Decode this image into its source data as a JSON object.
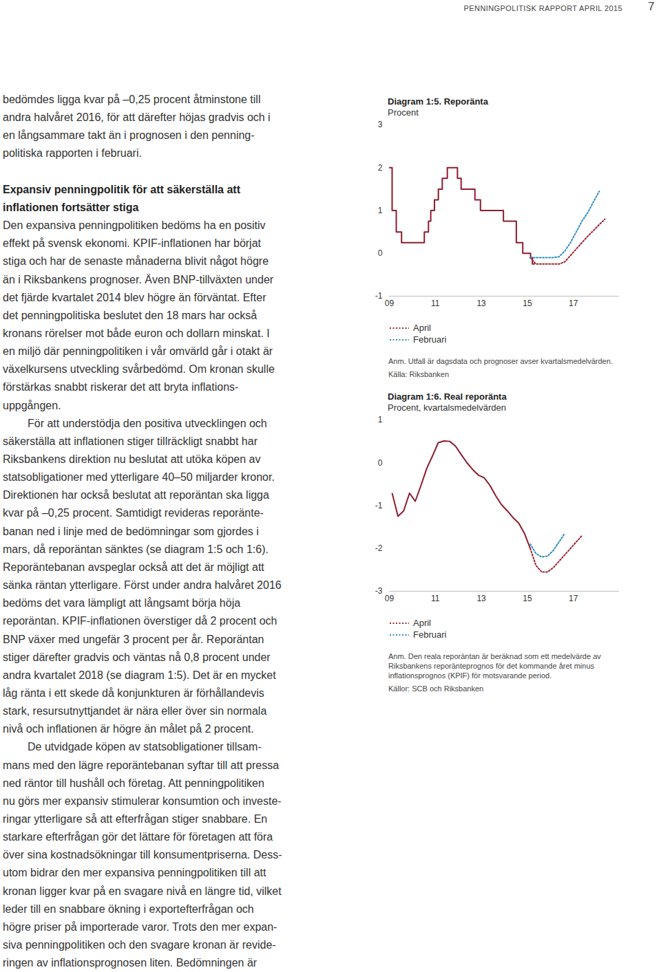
{
  "header": {
    "text": "PENNINGPOLITISK RAPPORT APRIL 2015",
    "page_number": 7
  },
  "body": [
    {
      "style": "text",
      "indent": false,
      "lines": [
        "bedömdes ligga kvar på –0,25 procent åtminstone till",
        "andra halvåret 2016, för att därefter höjas gradvis och i",
        "en långsammare takt än i prognosen i den penning-",
        "politiska rapporten i februari."
      ]
    },
    {
      "style": "heading",
      "indent": false,
      "lines": [
        "Expansiv penningpolitik för att säkerställa att",
        "inflationen fortsätter stiga"
      ]
    },
    {
      "style": "text",
      "indent": false,
      "lines": [
        "Den expansiva penningpolitiken bedöms ha en positiv",
        "effekt på svensk ekonomi. KPIF-inflationen har börjat",
        "stiga och har de senaste månaderna blivit något högre",
        "än i Riksbankens prognoser. Även BNP-tillväxten under",
        "det fjärde kvartalet 2014 blev högre än förväntat. Efter",
        "det penningpolitiska beslutet den 18 mars har också",
        "kronans rörelser mot både euron och dollarn minskat. I",
        "en miljö där penningpolitiken i vår omvärld går i otakt är",
        "växelkursens utveckling svårbedömd. Om kronan skulle",
        "förstärkas snabbt riskerar det att bryta inflations-",
        "uppgången."
      ]
    },
    {
      "style": "text",
      "indent": true,
      "lines": [
        "För att understödja den positiva utvecklingen och",
        "säkerställa att inflationen stiger tillräckligt snabbt har",
        "Riksbankens direktion nu beslutat att utöka köpen av",
        "statsobligationer med ytterligare 40–50 miljarder kronor.",
        "Direktionen har också beslutat att reporäntan ska ligga",
        "kvar på –0,25 procent. Samtidigt revideras reporänte-",
        "banan ned i linje med de bedömningar som gjordes i",
        "mars, då reporäntan sänktes (se diagram 1:5 och 1:6).",
        "Reporäntebanan avspeglar också att det är möjligt att",
        "sänka räntan ytterligare. Först under andra halvåret 2016",
        "bedöms det vara lämpligt att långsamt börja höja",
        "reporäntan. KPIF-inflationen överstiger då 2 procent och",
        "BNP växer med ungefär 3 procent per år. Reporäntan",
        "stiger därefter gradvis och väntas nå 0,8 procent under",
        "andra kvartalet 2018 (se diagram 1:5). Det är en mycket",
        "låg ränta i ett skede då konjunkturen är förhållandevis",
        "stark, resursutnyttjandet är nära eller över sin normala",
        "nivå och inflationen är högre än målet på 2 procent."
      ]
    },
    {
      "style": "text",
      "indent": true,
      "lines": [
        "De utvidgade köpen av statsobligationer tillsam-",
        "mans med den lägre reporäntebanan syftar till att pressa",
        "ned räntor till hushåll och företag. Att penningpolitiken",
        "nu görs mer expansiv stimulerar konsumtion och investe-",
        "ringar ytterligare så att efterfrågan stiger snabbare. En",
        "starkare efterfrågan gör det lättare för företagen att föra",
        "över sina kostnadsökningar till konsumentpriserna. Dess-",
        "utom bidrar den mer expansiva penningpolitiken till att",
        "kronan ligger kvar på en svagare nivå en längre tid, vilket",
        "leder till en snabbare ökning i exportefterfrågan och",
        "högre priser på importerade varor. Trots den mer expan-",
        "siva penningpolitiken och den svagare kronan är revide-",
        "ringen av inflationsprognosen liten. Bedömningen är"
      ]
    }
  ],
  "chart_data": [
    {
      "type": "line",
      "title": "Diagram 1:5. Reporänta",
      "subtitle": "Procent",
      "xlim": [
        2009,
        2019
      ],
      "xticks": [
        {
          "value": 2009,
          "label": "09"
        },
        {
          "value": 2011,
          "label": "11"
        },
        {
          "value": 2013,
          "label": "13"
        },
        {
          "value": 2015,
          "label": "15"
        },
        {
          "value": 2017,
          "label": "17"
        }
      ],
      "ylim": [
        -1,
        3
      ],
      "yticks": [
        -1,
        0,
        1,
        2,
        3
      ],
      "legend": "bottom-left",
      "series": [
        {
          "type": "step",
          "color": "#8c1c2c",
          "line_style": "solid",
          "x": [
            2009.0,
            2009.12,
            2009.3,
            2009.53,
            2010.52,
            2010.7,
            2010.8,
            2010.96,
            2011.13,
            2011.3,
            2011.52,
            2011.96,
            2012.12,
            2012.72,
            2012.96,
            2013.96,
            2014.52,
            2014.8,
            2015.14,
            2015.22,
            2015.3
          ],
          "values": [
            2.0,
            1.0,
            0.5,
            0.25,
            0.5,
            0.75,
            1.0,
            1.25,
            1.5,
            1.75,
            2.0,
            1.75,
            1.5,
            1.25,
            1.0,
            0.75,
            0.25,
            0.0,
            -0.1,
            -0.25,
            -0.25
          ]
        },
        {
          "name": "April",
          "type": "line",
          "color": "#a3202f",
          "line_style": "dotted",
          "x": [
            2015.125,
            2015.375,
            2015.625,
            2015.875,
            2016.125,
            2016.375,
            2016.625,
            2016.875,
            2017.125,
            2017.375,
            2017.625,
            2017.875,
            2018.125,
            2018.375
          ],
          "values": [
            -0.1,
            -0.25,
            -0.25,
            -0.25,
            -0.25,
            -0.25,
            -0.2,
            -0.05,
            0.1,
            0.25,
            0.4,
            0.53,
            0.67,
            0.8
          ]
        },
        {
          "name": "Februari",
          "type": "line",
          "color": "#2b8cc4",
          "line_style": "dotted",
          "x": [
            2015.125,
            2015.375,
            2015.625,
            2015.875,
            2016.125,
            2016.375,
            2016.625,
            2016.875,
            2017.125,
            2017.375,
            2017.625,
            2017.875,
            2018.125
          ],
          "values": [
            -0.1,
            -0.1,
            -0.1,
            -0.1,
            -0.1,
            -0.08,
            0.05,
            0.25,
            0.5,
            0.75,
            0.95,
            1.2,
            1.45
          ]
        }
      ],
      "notes": [
        [
          "Anm. Utfall är dagsdata och prognoser avser kvartalsmedelvärden."
        ],
        [
          "Källa: Riksbanken"
        ]
      ]
    },
    {
      "type": "line",
      "title": "Diagram 1:6. Real reporänta",
      "subtitle": "Procent, kvartalsmedelvärden",
      "xlim": [
        2009,
        2019
      ],
      "xticks": [
        {
          "value": 2009,
          "label": "09"
        },
        {
          "value": 2011,
          "label": "11"
        },
        {
          "value": 2013,
          "label": "13"
        },
        {
          "value": 2015,
          "label": "15"
        },
        {
          "value": 2017,
          "label": "17"
        }
      ],
      "ylim": [
        -3,
        1
      ],
      "yticks": [
        -3,
        -2,
        -1,
        0,
        1
      ],
      "legend": "bottom-left",
      "series": [
        {
          "type": "line",
          "color": "#8c1c2c",
          "line_style": "solid",
          "x": [
            2009.125,
            2009.375,
            2009.625,
            2009.875,
            2010.125,
            2010.375,
            2010.625,
            2010.875,
            2011.125,
            2011.375,
            2011.625,
            2011.875,
            2012.125,
            2012.375,
            2012.625,
            2012.875,
            2013.125,
            2013.375,
            2013.625,
            2013.875,
            2014.125,
            2014.375,
            2014.625,
            2014.875,
            2015.125
          ],
          "values": [
            -0.72,
            -1.25,
            -1.12,
            -0.71,
            -0.9,
            -0.53,
            -0.13,
            0.16,
            0.47,
            0.51,
            0.5,
            0.39,
            0.19,
            0.0,
            -0.16,
            -0.29,
            -0.35,
            -0.53,
            -0.77,
            -0.98,
            -1.12,
            -1.28,
            -1.41,
            -1.65,
            -2.0
          ]
        },
        {
          "name": "April",
          "type": "line",
          "color": "#a3202f",
          "line_style": "dotted",
          "x": [
            2015.125,
            2015.375,
            2015.625,
            2015.875,
            2016.125,
            2016.375,
            2016.625,
            2016.875,
            2017.125,
            2017.375
          ],
          "values": [
            -2.0,
            -2.4,
            -2.55,
            -2.55,
            -2.45,
            -2.3,
            -2.15,
            -2.0,
            -1.85,
            -1.7
          ]
        },
        {
          "name": "Februari",
          "type": "line",
          "color": "#2b8cc4",
          "line_style": "dotted",
          "x": [
            2015.125,
            2015.375,
            2015.625,
            2015.875,
            2016.125,
            2016.375,
            2016.625
          ],
          "values": [
            -1.9,
            -2.12,
            -2.2,
            -2.18,
            -2.05,
            -1.85,
            -1.65
          ]
        }
      ],
      "notes": [
        [
          "Anm. Den reala reporäntan är beräknad som ett medelvärde av",
          "Riksbankens reporänteprognos för det kommande året minus",
          "inflationsprognos (KPIF) för motsvarande period."
        ],
        [
          "Källor: SCB och Riksbanken"
        ]
      ]
    }
  ]
}
